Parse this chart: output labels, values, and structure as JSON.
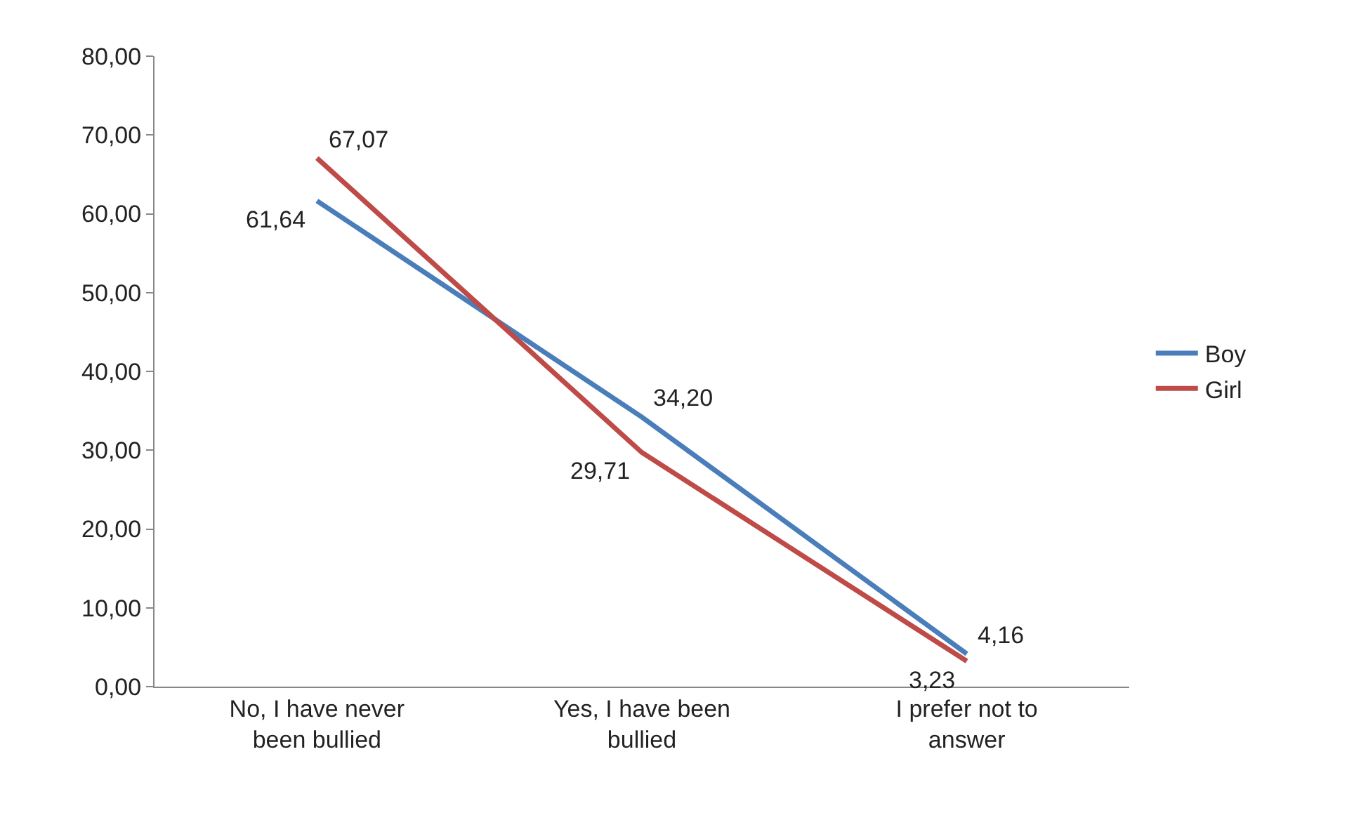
{
  "chart_data": {
    "type": "line",
    "categories": [
      "No, I have never been bullied",
      "Yes, I have been bullied",
      "I prefer not to answer"
    ],
    "series": [
      {
        "name": "Boy",
        "color": "#4a7ebb",
        "values": [
          61.64,
          34.2,
          4.16
        ],
        "value_labels": [
          "61,64",
          "34,20",
          "4,16"
        ]
      },
      {
        "name": "Girl",
        "color": "#be4b48",
        "values": [
          67.07,
          29.71,
          3.23
        ],
        "value_labels": [
          "67,07",
          "29,71",
          "3,23"
        ]
      }
    ],
    "ylim": [
      0,
      80
    ],
    "yticks": [
      {
        "value": 0,
        "label": "0,00"
      },
      {
        "value": 10,
        "label": "10,00"
      },
      {
        "value": 20,
        "label": "20,00"
      },
      {
        "value": 30,
        "label": "30,00"
      },
      {
        "value": 40,
        "label": "40,00"
      },
      {
        "value": 50,
        "label": "50,00"
      },
      {
        "value": 60,
        "label": "60,00"
      },
      {
        "value": 70,
        "label": "70,00"
      },
      {
        "value": 80,
        "label": "80,00"
      }
    ],
    "legend": "right",
    "marker": "none",
    "line_style": "solid"
  }
}
